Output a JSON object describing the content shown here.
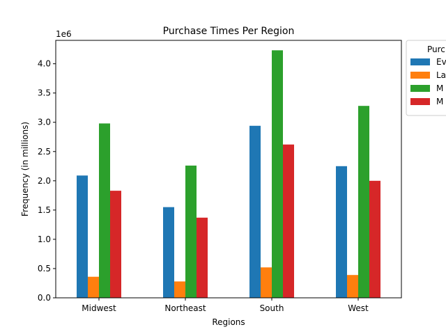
{
  "chart_data": {
    "type": "bar",
    "title": "Purchase Times Per Region",
    "xlabel": "Regions",
    "ylabel": "Frequency (in millions)",
    "y_offset_label": "1e6",
    "categories": [
      "Midwest",
      "Northeast",
      "South",
      "West"
    ],
    "ylim": [
      0,
      4400000
    ],
    "yticks": [
      0,
      500000,
      1000000,
      1500000,
      2000000,
      2500000,
      3000000,
      3500000,
      4000000
    ],
    "ytick_labels": [
      "0.0",
      "0.5",
      "1.0",
      "1.5",
      "2.0",
      "2.5",
      "3.0",
      "3.5",
      "4.0"
    ],
    "grid": false,
    "legend": {
      "title": "Purc",
      "placement": "outside-top-right"
    },
    "series": [
      {
        "name": "Ev",
        "color": "#1f77b4",
        "values": [
          2090000,
          1550000,
          2940000,
          2250000
        ]
      },
      {
        "name": "La",
        "color": "#ff7f0e",
        "values": [
          360000,
          280000,
          520000,
          390000
        ]
      },
      {
        "name": "M",
        "color": "#2ca02c",
        "values": [
          2980000,
          2260000,
          4230000,
          3280000
        ]
      },
      {
        "name": "M",
        "color": "#d62728",
        "values": [
          1830000,
          1370000,
          2620000,
          2000000
        ]
      }
    ]
  }
}
